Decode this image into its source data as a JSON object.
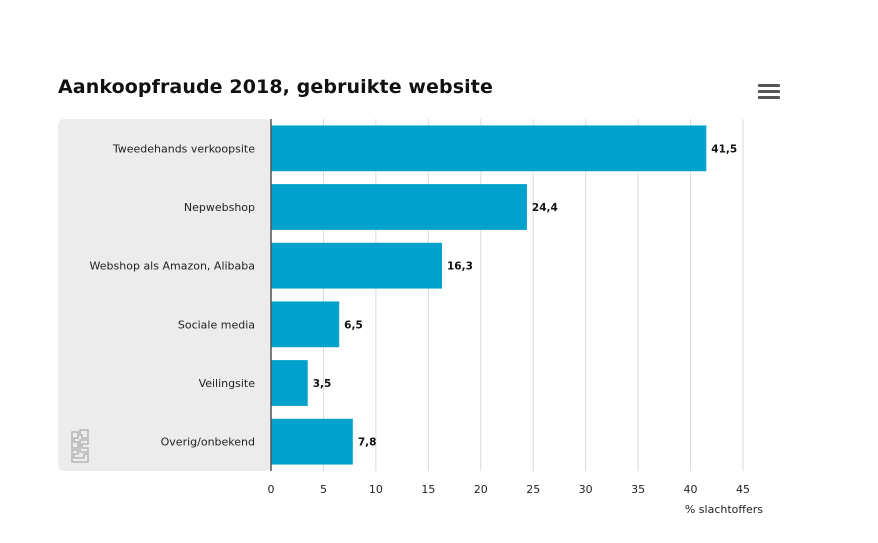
{
  "chart_data": {
    "type": "bar",
    "orientation": "horizontal",
    "title": "Aankoopfraude 2018, gebruikte website",
    "categories": [
      "Tweedehands verkoopsite",
      "Nepwebshop",
      "Webshop als Amazon, Alibaba",
      "Sociale media",
      "Veilingsite",
      "Overig/onbekend"
    ],
    "values": [
      41.5,
      24.4,
      16.3,
      6.5,
      3.5,
      7.8
    ],
    "value_labels": [
      "41,5",
      "24,4",
      "16,3",
      "6,5",
      "3,5",
      "7,8"
    ],
    "xlabel": "% slachtoffers",
    "ylabel": "",
    "xlim": [
      0,
      45
    ],
    "xticks": [
      0,
      5,
      10,
      15,
      20,
      25,
      30,
      35,
      40,
      45
    ],
    "xtick_labels": [
      "0",
      "5",
      "10",
      "15",
      "20",
      "25",
      "30",
      "35",
      "40",
      "45"
    ],
    "grid": true,
    "legend": "none",
    "bar_color": "#00a1cd"
  },
  "menu": {
    "icon": "hamburger-menu-icon"
  },
  "logo": {
    "icon": "cbs-logo-icon",
    "text": "cbs"
  }
}
